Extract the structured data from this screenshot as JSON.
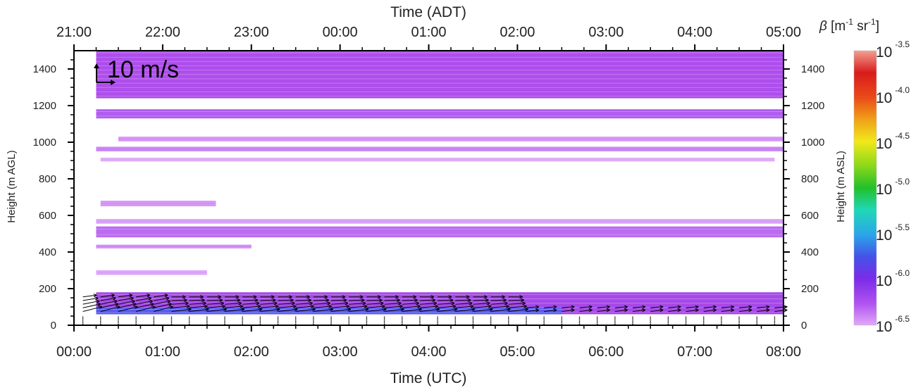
{
  "chart_data": {
    "type": "heatmap",
    "top_axis": {
      "label": "Time (ADT)",
      "ticks": [
        "21:00",
        "22:00",
        "23:00",
        "00:00",
        "01:00",
        "02:00",
        "03:00",
        "04:00",
        "05:00"
      ]
    },
    "bottom_axis": {
      "label": "Time (UTC)",
      "ticks": [
        "00:00",
        "01:00",
        "02:00",
        "03:00",
        "04:00",
        "05:00",
        "06:00",
        "07:00",
        "08:00"
      ],
      "range_hours": [
        0,
        8
      ]
    },
    "left_axis": {
      "label": "Height (m AGL)",
      "ticks": [
        "0",
        "200",
        "400",
        "600",
        "800",
        "1000",
        "1200",
        "1400"
      ],
      "range": [
        0,
        1500
      ]
    },
    "right_axis": {
      "label": "Height (m ASL)",
      "ticks": [
        "0",
        "200",
        "400",
        "600",
        "800",
        "1000",
        "1200",
        "1400"
      ]
    },
    "colorbar": {
      "title": "β [m⁻¹ sr⁻¹]",
      "scale": "log",
      "range_exponent": [
        -6.5,
        -3.5
      ],
      "ticks": [
        {
          "base": "10",
          "exp": "-3.5"
        },
        {
          "base": "10",
          "exp": "-4.0"
        },
        {
          "base": "10",
          "exp": "-4.5"
        },
        {
          "base": "10",
          "exp": "-5.0"
        },
        {
          "base": "10",
          "exp": "-5.5"
        },
        {
          "base": "10",
          "exp": "-6.0"
        },
        {
          "base": "10",
          "exp": "-6.5"
        }
      ]
    },
    "wind_scale_label": "10 m/s",
    "layers": [
      {
        "name": "upper-layer-a",
        "t0": 0.25,
        "t1": 8,
        "h0": 1240,
        "h1": 1500,
        "color": "#a53bea"
      },
      {
        "name": "upper-layer-b",
        "t0": 0.25,
        "t1": 8,
        "h0": 1130,
        "h1": 1180,
        "color": "#a94af0"
      },
      {
        "name": "layer-1000",
        "t0": 0.5,
        "t1": 8,
        "h0": 1005,
        "h1": 1030,
        "color": "#cc80f5"
      },
      {
        "name": "layer-960",
        "t0": 0.25,
        "t1": 8,
        "h0": 950,
        "h1": 975,
        "color": "#c070f3"
      },
      {
        "name": "layer-905",
        "t0": 0.3,
        "t1": 7.9,
        "h0": 895,
        "h1": 915,
        "color": "#d99cf7"
      },
      {
        "name": "layer-660",
        "t0": 0.3,
        "t1": 1.6,
        "h0": 650,
        "h1": 680,
        "color": "#cd84f5"
      },
      {
        "name": "layer-570",
        "t0": 0.25,
        "t1": 8,
        "h0": 555,
        "h1": 580,
        "color": "#d090f5"
      },
      {
        "name": "layer-520",
        "t0": 0.25,
        "t1": 8,
        "h0": 480,
        "h1": 540,
        "color": "#b45cf0"
      },
      {
        "name": "layer-430",
        "t0": 0.25,
        "t1": 2.0,
        "h0": 420,
        "h1": 440,
        "color": "#c577f3"
      },
      {
        "name": "layer-290",
        "t0": 0.25,
        "t1": 1.5,
        "h0": 275,
        "h1": 300,
        "color": "#d598f7"
      },
      {
        "name": "boundary-layer",
        "t0": 0.25,
        "t1": 8,
        "h0": 60,
        "h1": 180,
        "color": "#9b35e5"
      },
      {
        "name": "near-surface-blue",
        "t0": 0.25,
        "t1": 5.5,
        "h0": 60,
        "h1": 95,
        "color": "#4b5df0"
      }
    ]
  }
}
